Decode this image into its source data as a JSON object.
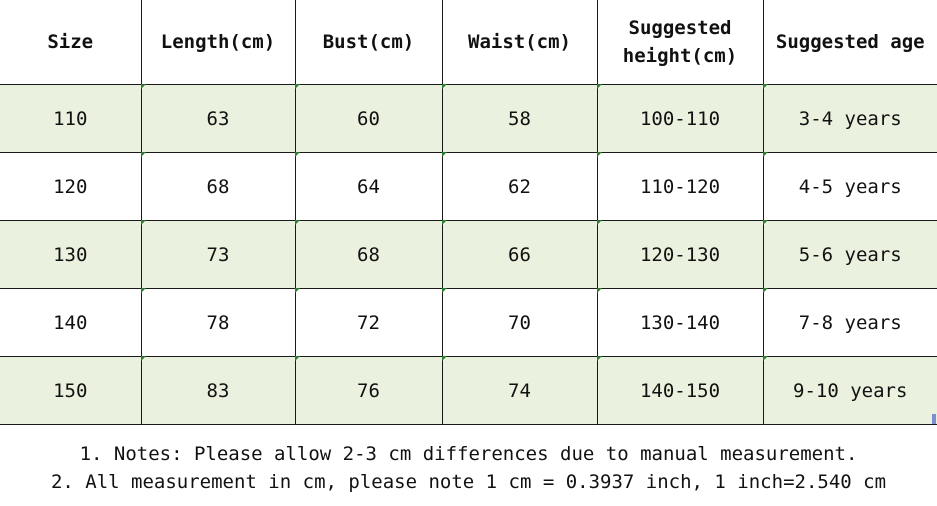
{
  "table": {
    "headers": [
      "Size",
      "Length(cm)",
      "Bust(cm)",
      "Waist(cm)",
      "Suggested\nheight(cm)",
      "Suggested age"
    ],
    "rows": [
      [
        "110",
        "63",
        "60",
        "58",
        "100-110",
        "3-4 years"
      ],
      [
        "120",
        "68",
        "64",
        "62",
        "110-120",
        "4-5 years"
      ],
      [
        "130",
        "73",
        "68",
        "66",
        "120-130",
        "5-6 years"
      ],
      [
        "140",
        "78",
        "72",
        "70",
        "130-140",
        "7-8 years"
      ],
      [
        "150",
        "83",
        "76",
        "74",
        "140-150",
        "9-10 years"
      ]
    ]
  },
  "notes": {
    "line1": "1. Notes: Please allow 2-3 cm differences due to manual measurement.",
    "line2": "2. All measurement in cm, please note 1 cm = 0.3937 inch, 1 inch=2.540 cm"
  },
  "colors": {
    "shaded_row": "#eaf1de",
    "border": "#1a1a1a",
    "corner_tick": "#2e7d32"
  }
}
